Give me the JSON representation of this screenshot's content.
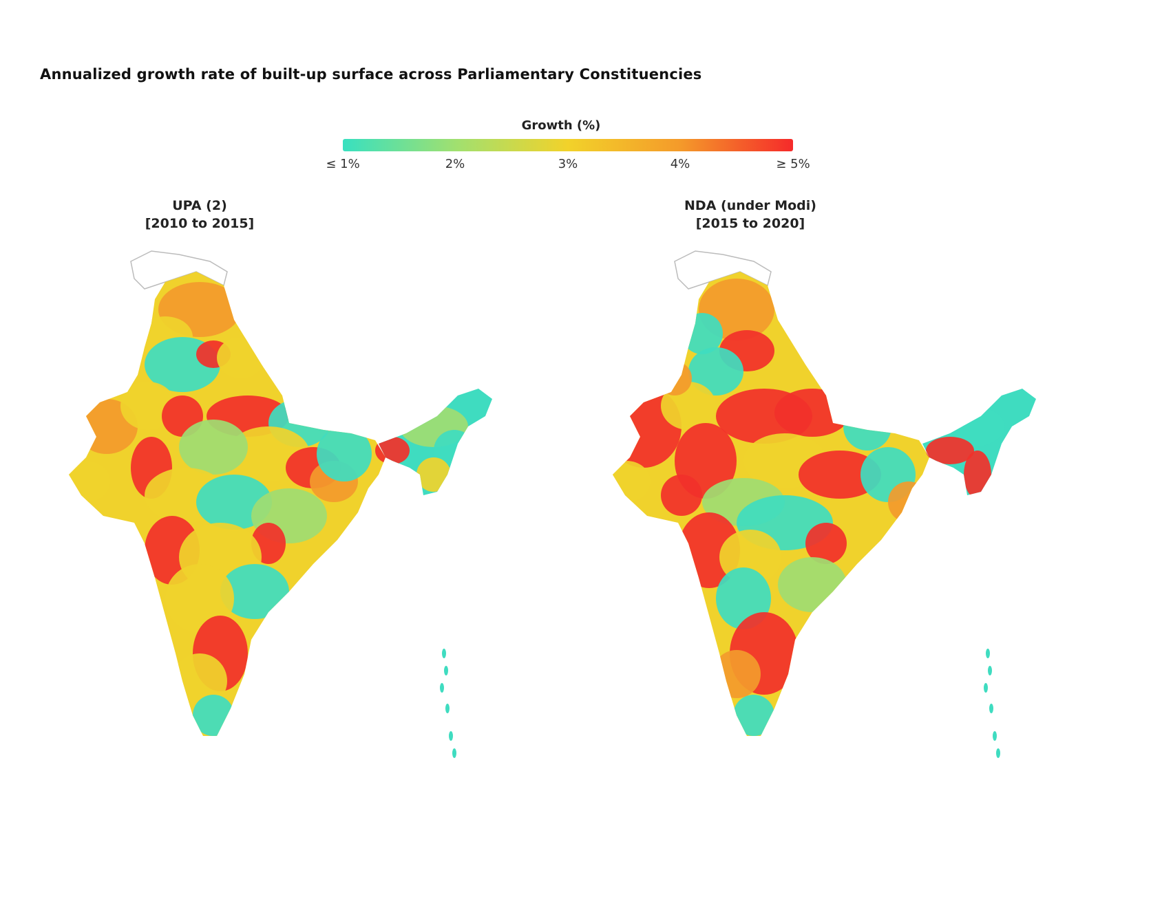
{
  "title": "Annualized growth rate of built-up surface across Parliamentary Constituencies",
  "legend": {
    "title": "Growth (%)",
    "ticks": [
      "≤ 1%",
      "2%",
      "3%",
      "4%",
      "≥ 5%"
    ],
    "colors": [
      "#38e0c0",
      "#a0e070",
      "#f2d22a",
      "#f49a2a",
      "#f52a2a"
    ]
  },
  "maps": [
    {
      "line1": "UPA (2)",
      "line2": "[2010 to 2015]"
    },
    {
      "line1": "NDA (under Modi)",
      "line2": "[2015 to 2020]"
    }
  ]
}
